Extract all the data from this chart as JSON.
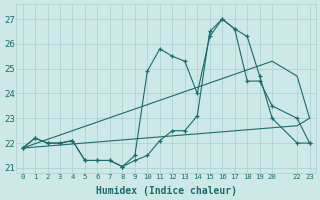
{
  "xlabel": "Humidex (Indice chaleur)",
  "background_color": "#cce9e8",
  "grid_color": "#aacfcf",
  "line_color": "#1a6b6b",
  "ylim": [
    20.8,
    27.6
  ],
  "xlim": [
    -0.5,
    23.5
  ],
  "yticks": [
    21,
    22,
    23,
    24,
    25,
    26,
    27
  ],
  "xtick_positions": [
    0,
    1,
    2,
    3,
    4,
    5,
    6,
    7,
    8,
    9,
    10,
    11,
    12,
    13,
    14,
    15,
    16,
    17,
    18,
    19,
    20,
    22,
    23
  ],
  "xtick_labels": [
    "0",
    "1",
    "2",
    "3",
    "4",
    "5",
    "6",
    "7",
    "8",
    "9",
    "10",
    "11",
    "12",
    "13",
    "14",
    "15",
    "16",
    "17",
    "18",
    "19",
    "20",
    "22",
    "23"
  ],
  "line1_x": [
    0,
    1,
    2,
    3,
    4,
    5,
    6,
    7,
    8,
    9,
    10,
    11,
    12,
    13,
    14,
    15,
    16,
    17,
    18,
    19,
    20,
    22,
    23
  ],
  "line1_y": [
    21.8,
    22.2,
    22.0,
    22.0,
    22.1,
    21.3,
    21.3,
    21.3,
    21.05,
    21.3,
    21.5,
    22.1,
    22.5,
    22.5,
    23.1,
    26.5,
    27.0,
    26.6,
    24.5,
    24.5,
    23.5,
    23.0,
    22.0
  ],
  "line2_x": [
    0,
    1,
    2,
    3,
    4,
    5,
    6,
    7,
    8,
    9,
    10,
    11,
    12,
    13,
    14,
    15,
    16,
    17,
    18,
    19,
    20,
    22,
    23
  ],
  "line2_y": [
    21.8,
    22.2,
    22.0,
    22.0,
    22.1,
    21.3,
    21.3,
    21.3,
    21.05,
    21.5,
    24.9,
    25.8,
    25.5,
    25.3,
    24.0,
    26.3,
    27.0,
    26.6,
    26.3,
    24.7,
    23.0,
    22.0,
    22.0
  ],
  "line3_x": [
    0,
    22,
    23
  ],
  "line3_y": [
    21.8,
    22.7,
    23.0
  ],
  "line4_x": [
    0,
    20,
    22,
    23
  ],
  "line4_y": [
    21.8,
    25.3,
    24.7,
    23.0
  ]
}
